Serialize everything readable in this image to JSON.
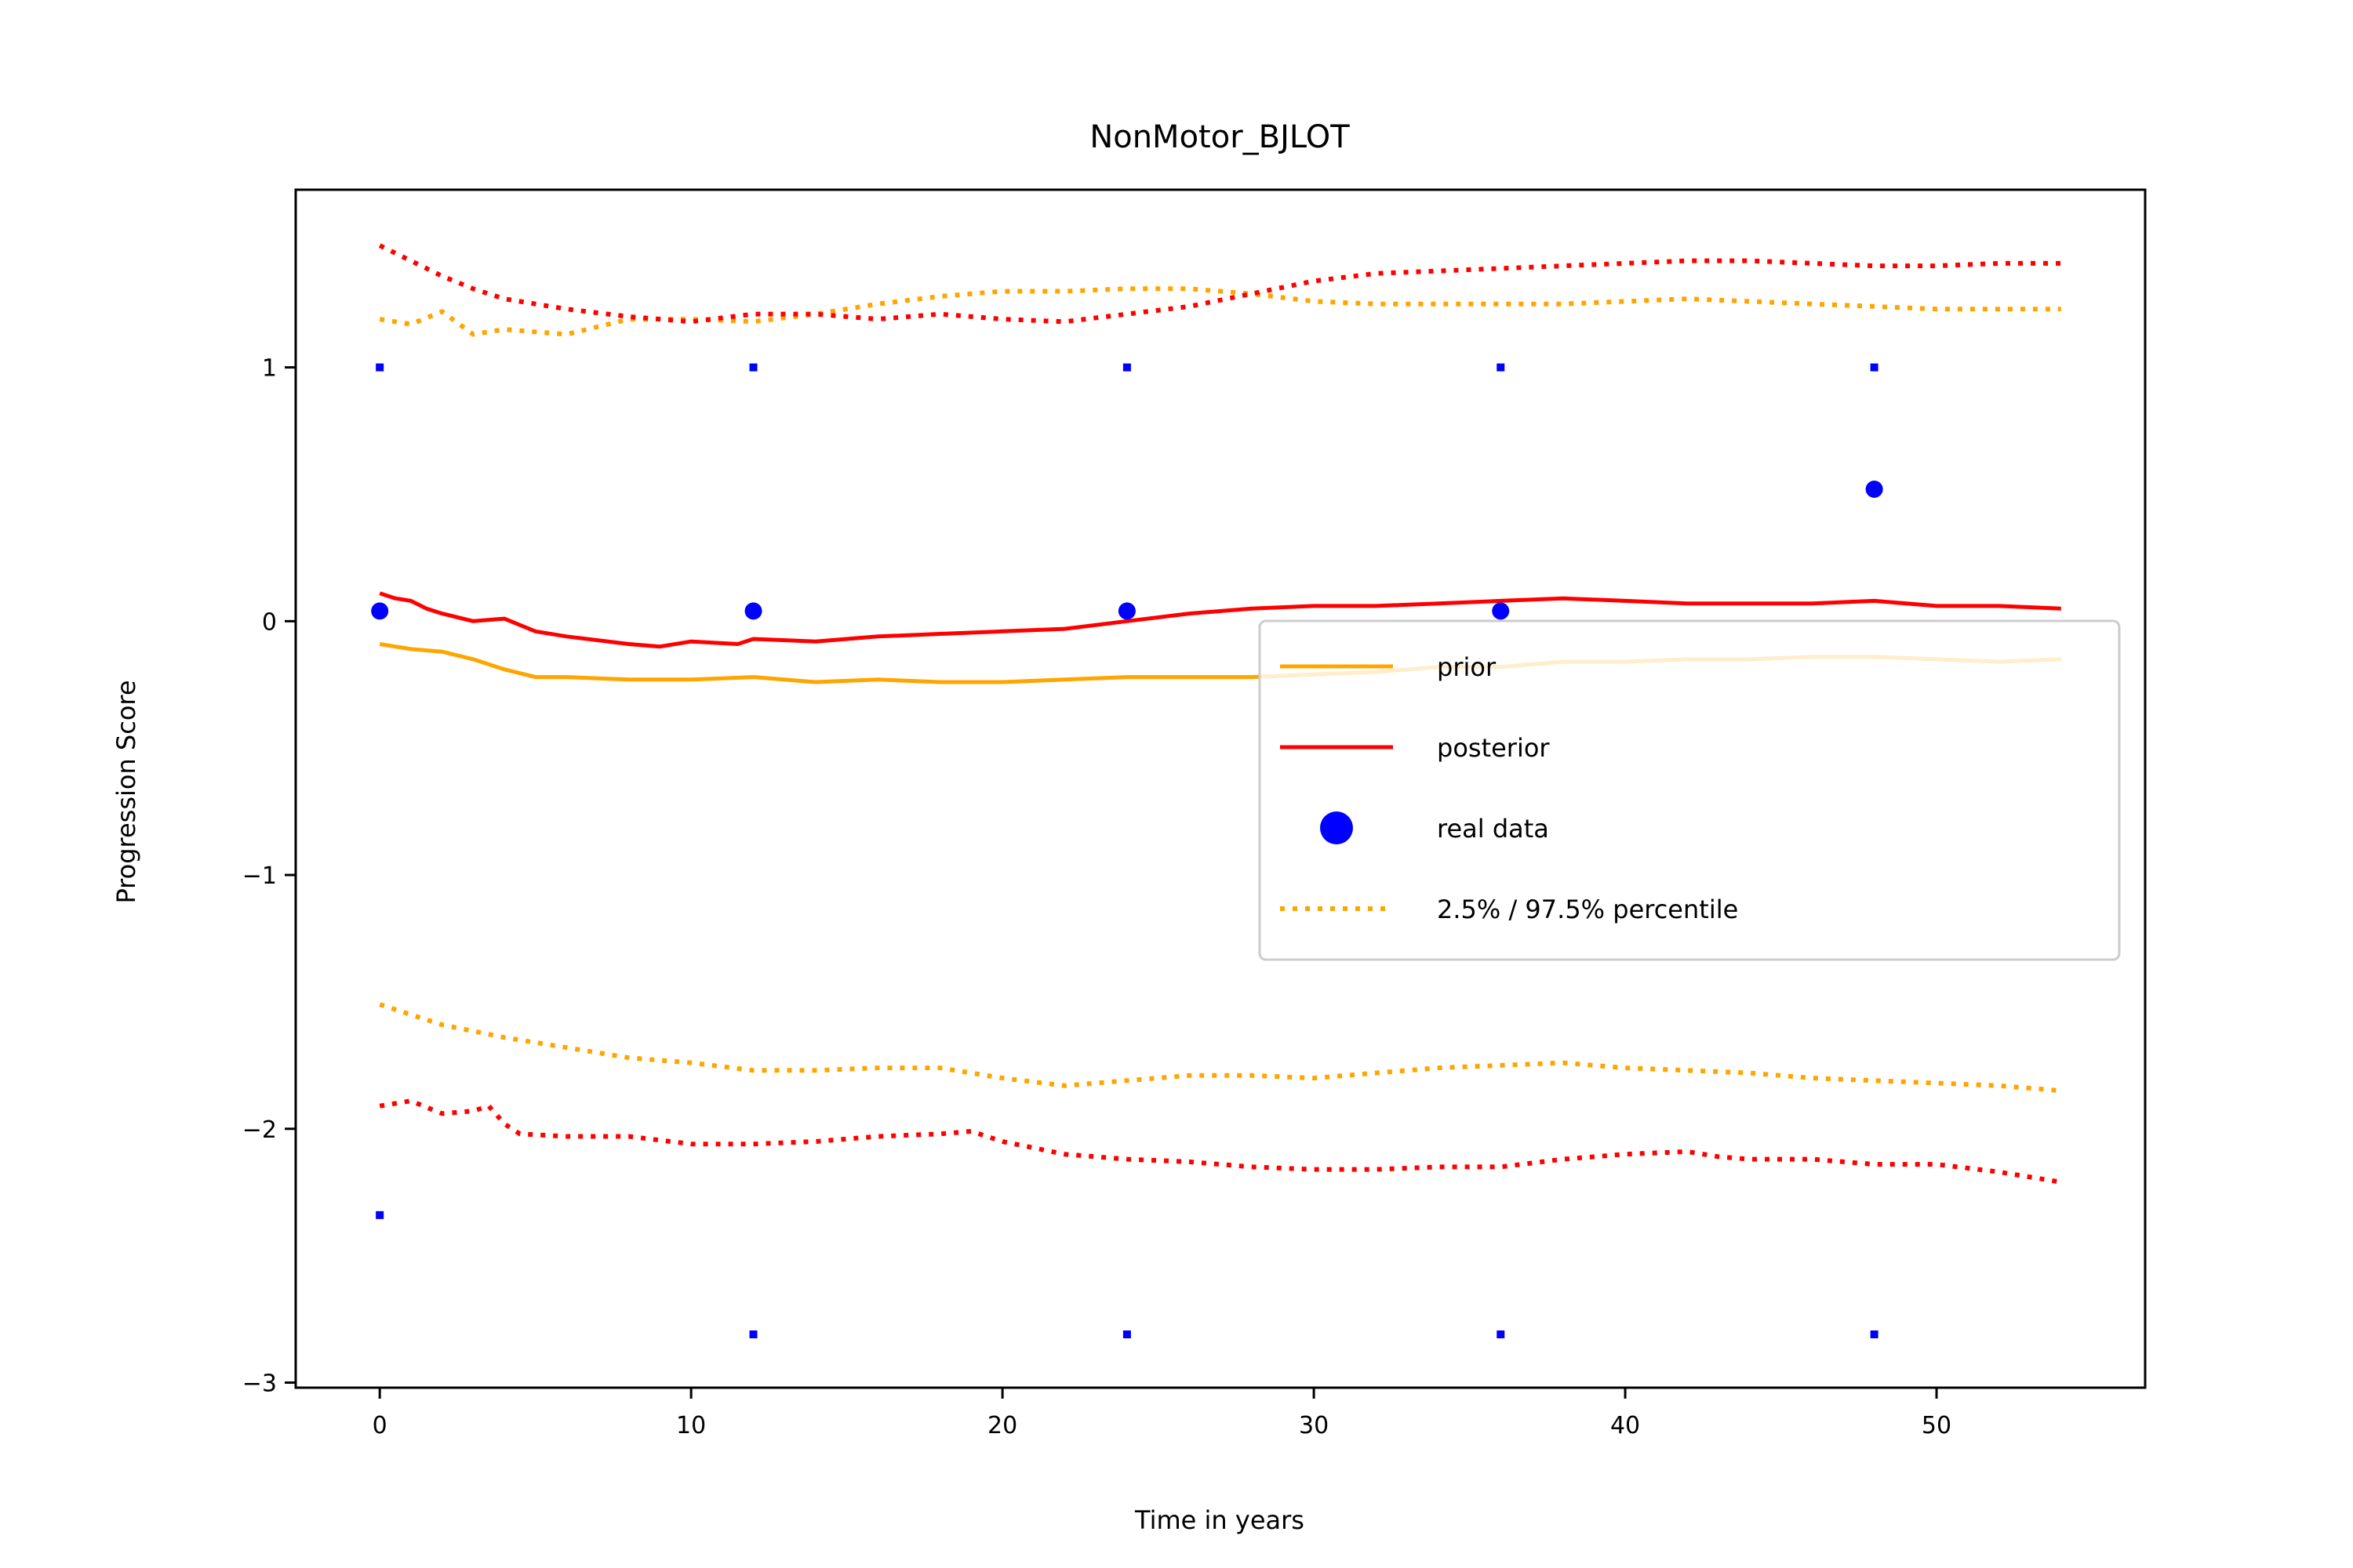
{
  "chart_data": {
    "type": "line",
    "title": "NonMotor_BJLOT",
    "xlabel": "Time in years",
    "ylabel": "Progression Score",
    "xlim": [
      -2.7,
      56.7
    ],
    "ylim": [
      -3.02,
      1.7
    ],
    "xticks": [
      0,
      10,
      20,
      30,
      40,
      50
    ],
    "yticks": [
      -3,
      -2,
      -1,
      0,
      1
    ],
    "ytick_labels": [
      "−3",
      "−2",
      "−1",
      "0",
      "1"
    ],
    "grid": false,
    "legend_position": "center-right",
    "colors": {
      "prior": "#ffa500",
      "posterior": "#ff0000",
      "real_data": "#0000ff"
    },
    "legend": [
      {
        "label": "prior",
        "style": "line",
        "color": "#ffa500"
      },
      {
        "label": "posterior",
        "style": "line",
        "color": "#ff0000"
      },
      {
        "label": "real data",
        "style": "marker",
        "color": "#0000ff"
      },
      {
        "label": "2.5% / 97.5% percentile",
        "style": "dotted",
        "color": "#ffa500"
      }
    ],
    "series": [
      {
        "name": "prior",
        "style": "solid",
        "color": "#ffa500",
        "x": [
          0,
          1,
          2,
          3,
          4,
          5,
          6,
          8,
          10,
          12,
          14,
          16,
          18,
          20,
          22,
          24,
          26,
          28,
          30,
          32,
          34,
          36,
          38,
          40,
          42,
          44,
          46,
          48,
          50,
          52,
          54
        ],
        "y": [
          -0.09,
          -0.11,
          -0.12,
          -0.15,
          -0.19,
          -0.22,
          -0.22,
          -0.23,
          -0.23,
          -0.22,
          -0.24,
          -0.23,
          -0.24,
          -0.24,
          -0.23,
          -0.22,
          -0.22,
          -0.22,
          -0.21,
          -0.2,
          -0.18,
          -0.18,
          -0.16,
          -0.16,
          -0.15,
          -0.15,
          -0.14,
          -0.14,
          -0.15,
          -0.16,
          -0.15
        ]
      },
      {
        "name": "posterior",
        "style": "solid",
        "color": "#ff0000",
        "x": [
          0,
          0.5,
          1,
          1.5,
          2,
          3,
          4,
          5,
          6,
          8,
          9,
          10,
          11.5,
          12,
          14,
          16,
          18,
          20,
          22,
          24,
          26,
          28,
          30,
          32,
          34,
          36,
          38,
          40,
          42,
          44,
          46,
          48,
          50,
          52,
          54
        ],
        "y": [
          0.11,
          0.09,
          0.08,
          0.05,
          0.03,
          0.0,
          0.01,
          -0.04,
          -0.06,
          -0.09,
          -0.1,
          -0.08,
          -0.09,
          -0.07,
          -0.08,
          -0.06,
          -0.05,
          -0.04,
          -0.03,
          0.0,
          0.03,
          0.05,
          0.06,
          0.06,
          0.07,
          0.08,
          0.09,
          0.08,
          0.07,
          0.07,
          0.07,
          0.08,
          0.06,
          0.06,
          0.05
        ]
      },
      {
        "name": "prior 97.5% percentile",
        "style": "dotted",
        "color": "#ffa500",
        "x": [
          0,
          1,
          2,
          3,
          4,
          6,
          8,
          10,
          12,
          14,
          16,
          18,
          20,
          22,
          24,
          26,
          28,
          30,
          32,
          34,
          36,
          38,
          40,
          42,
          44,
          46,
          48,
          50,
          52,
          54
        ],
        "y": [
          1.19,
          1.17,
          1.22,
          1.13,
          1.15,
          1.13,
          1.19,
          1.19,
          1.18,
          1.21,
          1.25,
          1.28,
          1.3,
          1.3,
          1.31,
          1.31,
          1.29,
          1.26,
          1.25,
          1.25,
          1.25,
          1.25,
          1.26,
          1.27,
          1.26,
          1.25,
          1.24,
          1.23,
          1.23,
          1.23
        ]
      },
      {
        "name": "prior 2.5% percentile",
        "style": "dotted",
        "color": "#ffa500",
        "x": [
          0,
          2,
          4,
          6,
          8,
          10,
          12,
          14,
          16,
          18,
          20,
          22,
          24,
          26,
          28,
          30,
          32,
          34,
          36,
          38,
          40,
          42,
          44,
          46,
          48,
          50,
          52,
          54
        ],
        "y": [
          -1.51,
          -1.59,
          -1.64,
          -1.68,
          -1.72,
          -1.74,
          -1.77,
          -1.77,
          -1.76,
          -1.76,
          -1.8,
          -1.83,
          -1.81,
          -1.79,
          -1.79,
          -1.8,
          -1.78,
          -1.76,
          -1.75,
          -1.74,
          -1.76,
          -1.77,
          -1.78,
          -1.8,
          -1.81,
          -1.82,
          -1.83,
          -1.85
        ]
      },
      {
        "name": "posterior 97.5% percentile",
        "style": "dotted",
        "color": "#ff0000",
        "x": [
          0,
          1,
          2,
          3,
          4,
          6,
          8,
          10,
          12,
          14,
          16,
          18,
          20,
          22,
          24,
          26,
          28,
          30,
          32,
          34,
          36,
          38,
          40,
          42,
          44,
          46,
          48,
          50,
          52,
          54
        ],
        "y": [
          1.48,
          1.42,
          1.36,
          1.31,
          1.27,
          1.23,
          1.2,
          1.18,
          1.21,
          1.21,
          1.19,
          1.21,
          1.19,
          1.18,
          1.21,
          1.24,
          1.29,
          1.34,
          1.37,
          1.38,
          1.39,
          1.4,
          1.41,
          1.42,
          1.42,
          1.41,
          1.4,
          1.4,
          1.41,
          1.41
        ]
      },
      {
        "name": "posterior 2.5% percentile",
        "style": "dotted",
        "color": "#ff0000",
        "x": [
          0,
          1,
          2,
          3,
          3.5,
          4,
          4.5,
          6,
          8,
          10,
          12,
          14,
          16,
          18,
          19,
          20,
          22,
          24,
          26,
          28,
          30,
          32,
          34,
          36,
          38,
          40,
          42,
          43,
          44,
          46,
          48,
          50,
          52,
          54
        ],
        "y": [
          -1.91,
          -1.89,
          -1.94,
          -1.93,
          -1.91,
          -1.98,
          -2.02,
          -2.03,
          -2.03,
          -2.06,
          -2.06,
          -2.05,
          -2.03,
          -2.02,
          -2.01,
          -2.05,
          -2.1,
          -2.12,
          -2.13,
          -2.15,
          -2.16,
          -2.16,
          -2.15,
          -2.15,
          -2.12,
          -2.1,
          -2.09,
          -2.11,
          -2.12,
          -2.12,
          -2.14,
          -2.14,
          -2.17,
          -2.21
        ]
      }
    ],
    "real_data": {
      "name": "real data",
      "color": "#0000ff",
      "points": [
        {
          "x": 0,
          "y": 0.04
        },
        {
          "x": 12,
          "y": 0.04
        },
        {
          "x": 24,
          "y": 0.04
        },
        {
          "x": 36,
          "y": 0.04
        },
        {
          "x": 48,
          "y": 0.52
        }
      ],
      "small_markers": [
        {
          "x": 0,
          "y": 1.0
        },
        {
          "x": 12,
          "y": 1.0
        },
        {
          "x": 24,
          "y": 1.0
        },
        {
          "x": 36,
          "y": 1.0
        },
        {
          "x": 48,
          "y": 1.0
        },
        {
          "x": 0,
          "y": -2.34
        },
        {
          "x": 12,
          "y": -2.81
        },
        {
          "x": 24,
          "y": -2.81
        },
        {
          "x": 36,
          "y": -2.81
        },
        {
          "x": 48,
          "y": -2.81
        }
      ]
    }
  }
}
